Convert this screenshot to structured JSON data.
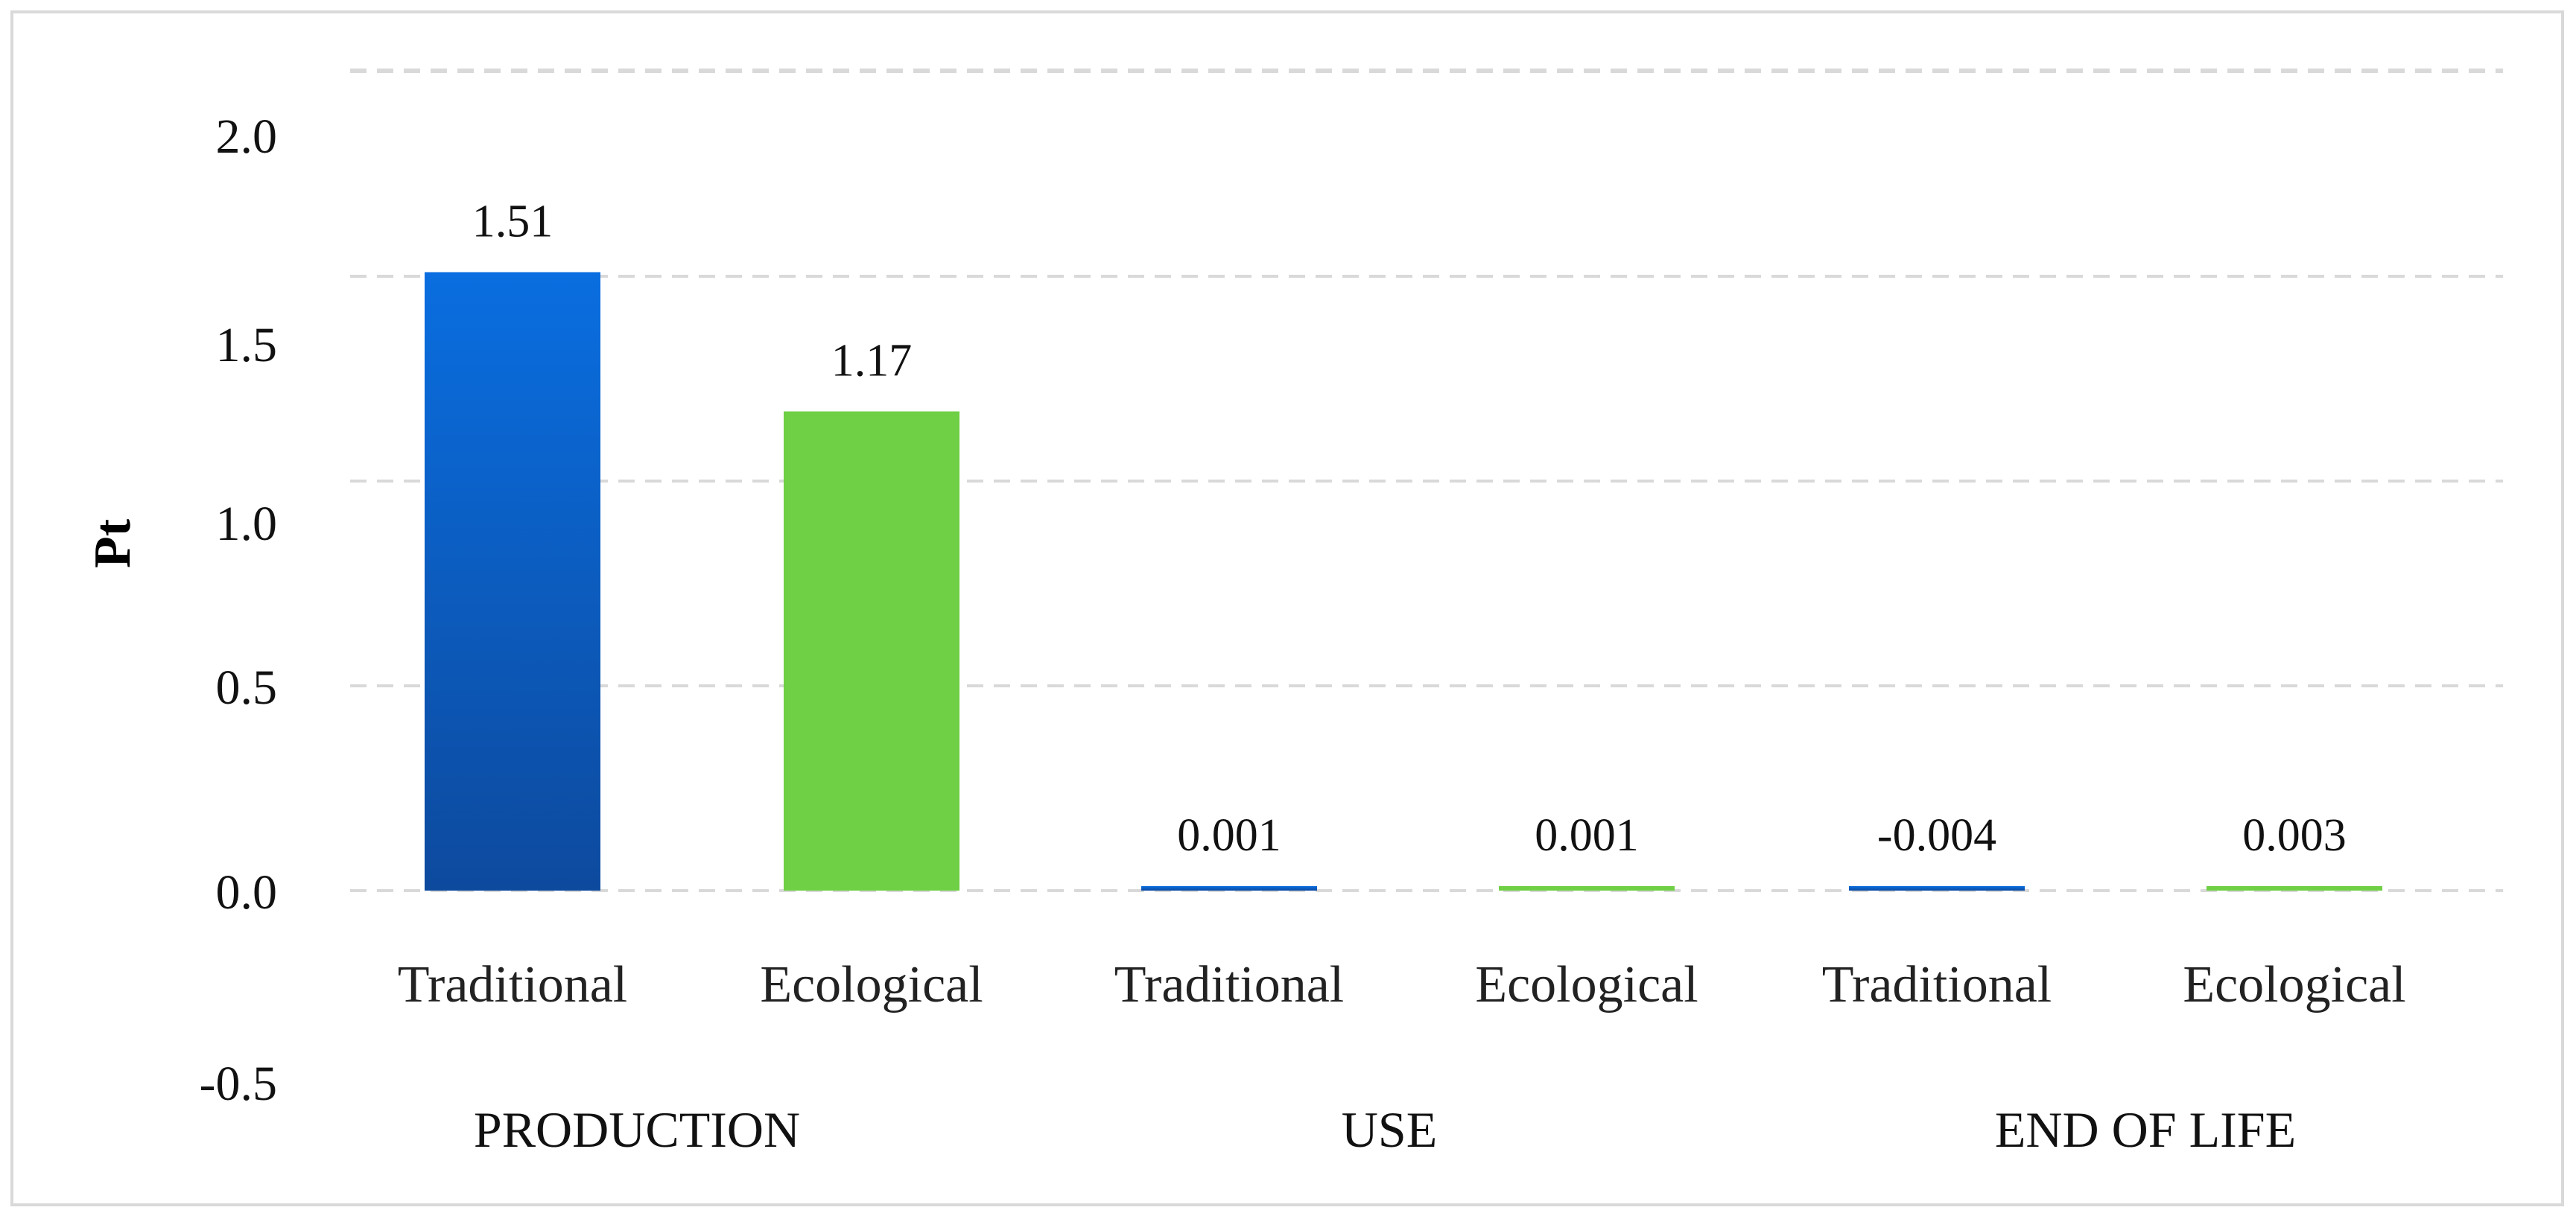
{
  "chart_data": {
    "type": "bar",
    "ylabel": "Pt",
    "ylim": [
      -0.5,
      2.0
    ],
    "y_ticks": [
      "2.0",
      "1.5",
      "1.0",
      "0.5",
      "0.0",
      "-0.5"
    ],
    "grid": true,
    "groups": [
      {
        "name": "PRODUCTION",
        "bars": [
          {
            "category": "Traditional",
            "value": 1.51,
            "label": "1.51",
            "color": "#1565c0"
          },
          {
            "category": "Ecological",
            "value": 1.17,
            "label": "1.17",
            "color": "#6fcf45"
          }
        ]
      },
      {
        "name": "USE",
        "bars": [
          {
            "category": "Traditional",
            "value": 0.001,
            "label": "0.001",
            "color": "#1565c0"
          },
          {
            "category": "Ecological",
            "value": 0.001,
            "label": "0.001",
            "color": "#6fcf45"
          }
        ]
      },
      {
        "name": "END OF LIFE",
        "bars": [
          {
            "category": "Traditional",
            "value": -0.004,
            "label": "-0.004",
            "color": "#1565c0"
          },
          {
            "category": "Ecological",
            "value": 0.003,
            "label": "0.003",
            "color": "#6fcf45"
          }
        ]
      }
    ]
  }
}
